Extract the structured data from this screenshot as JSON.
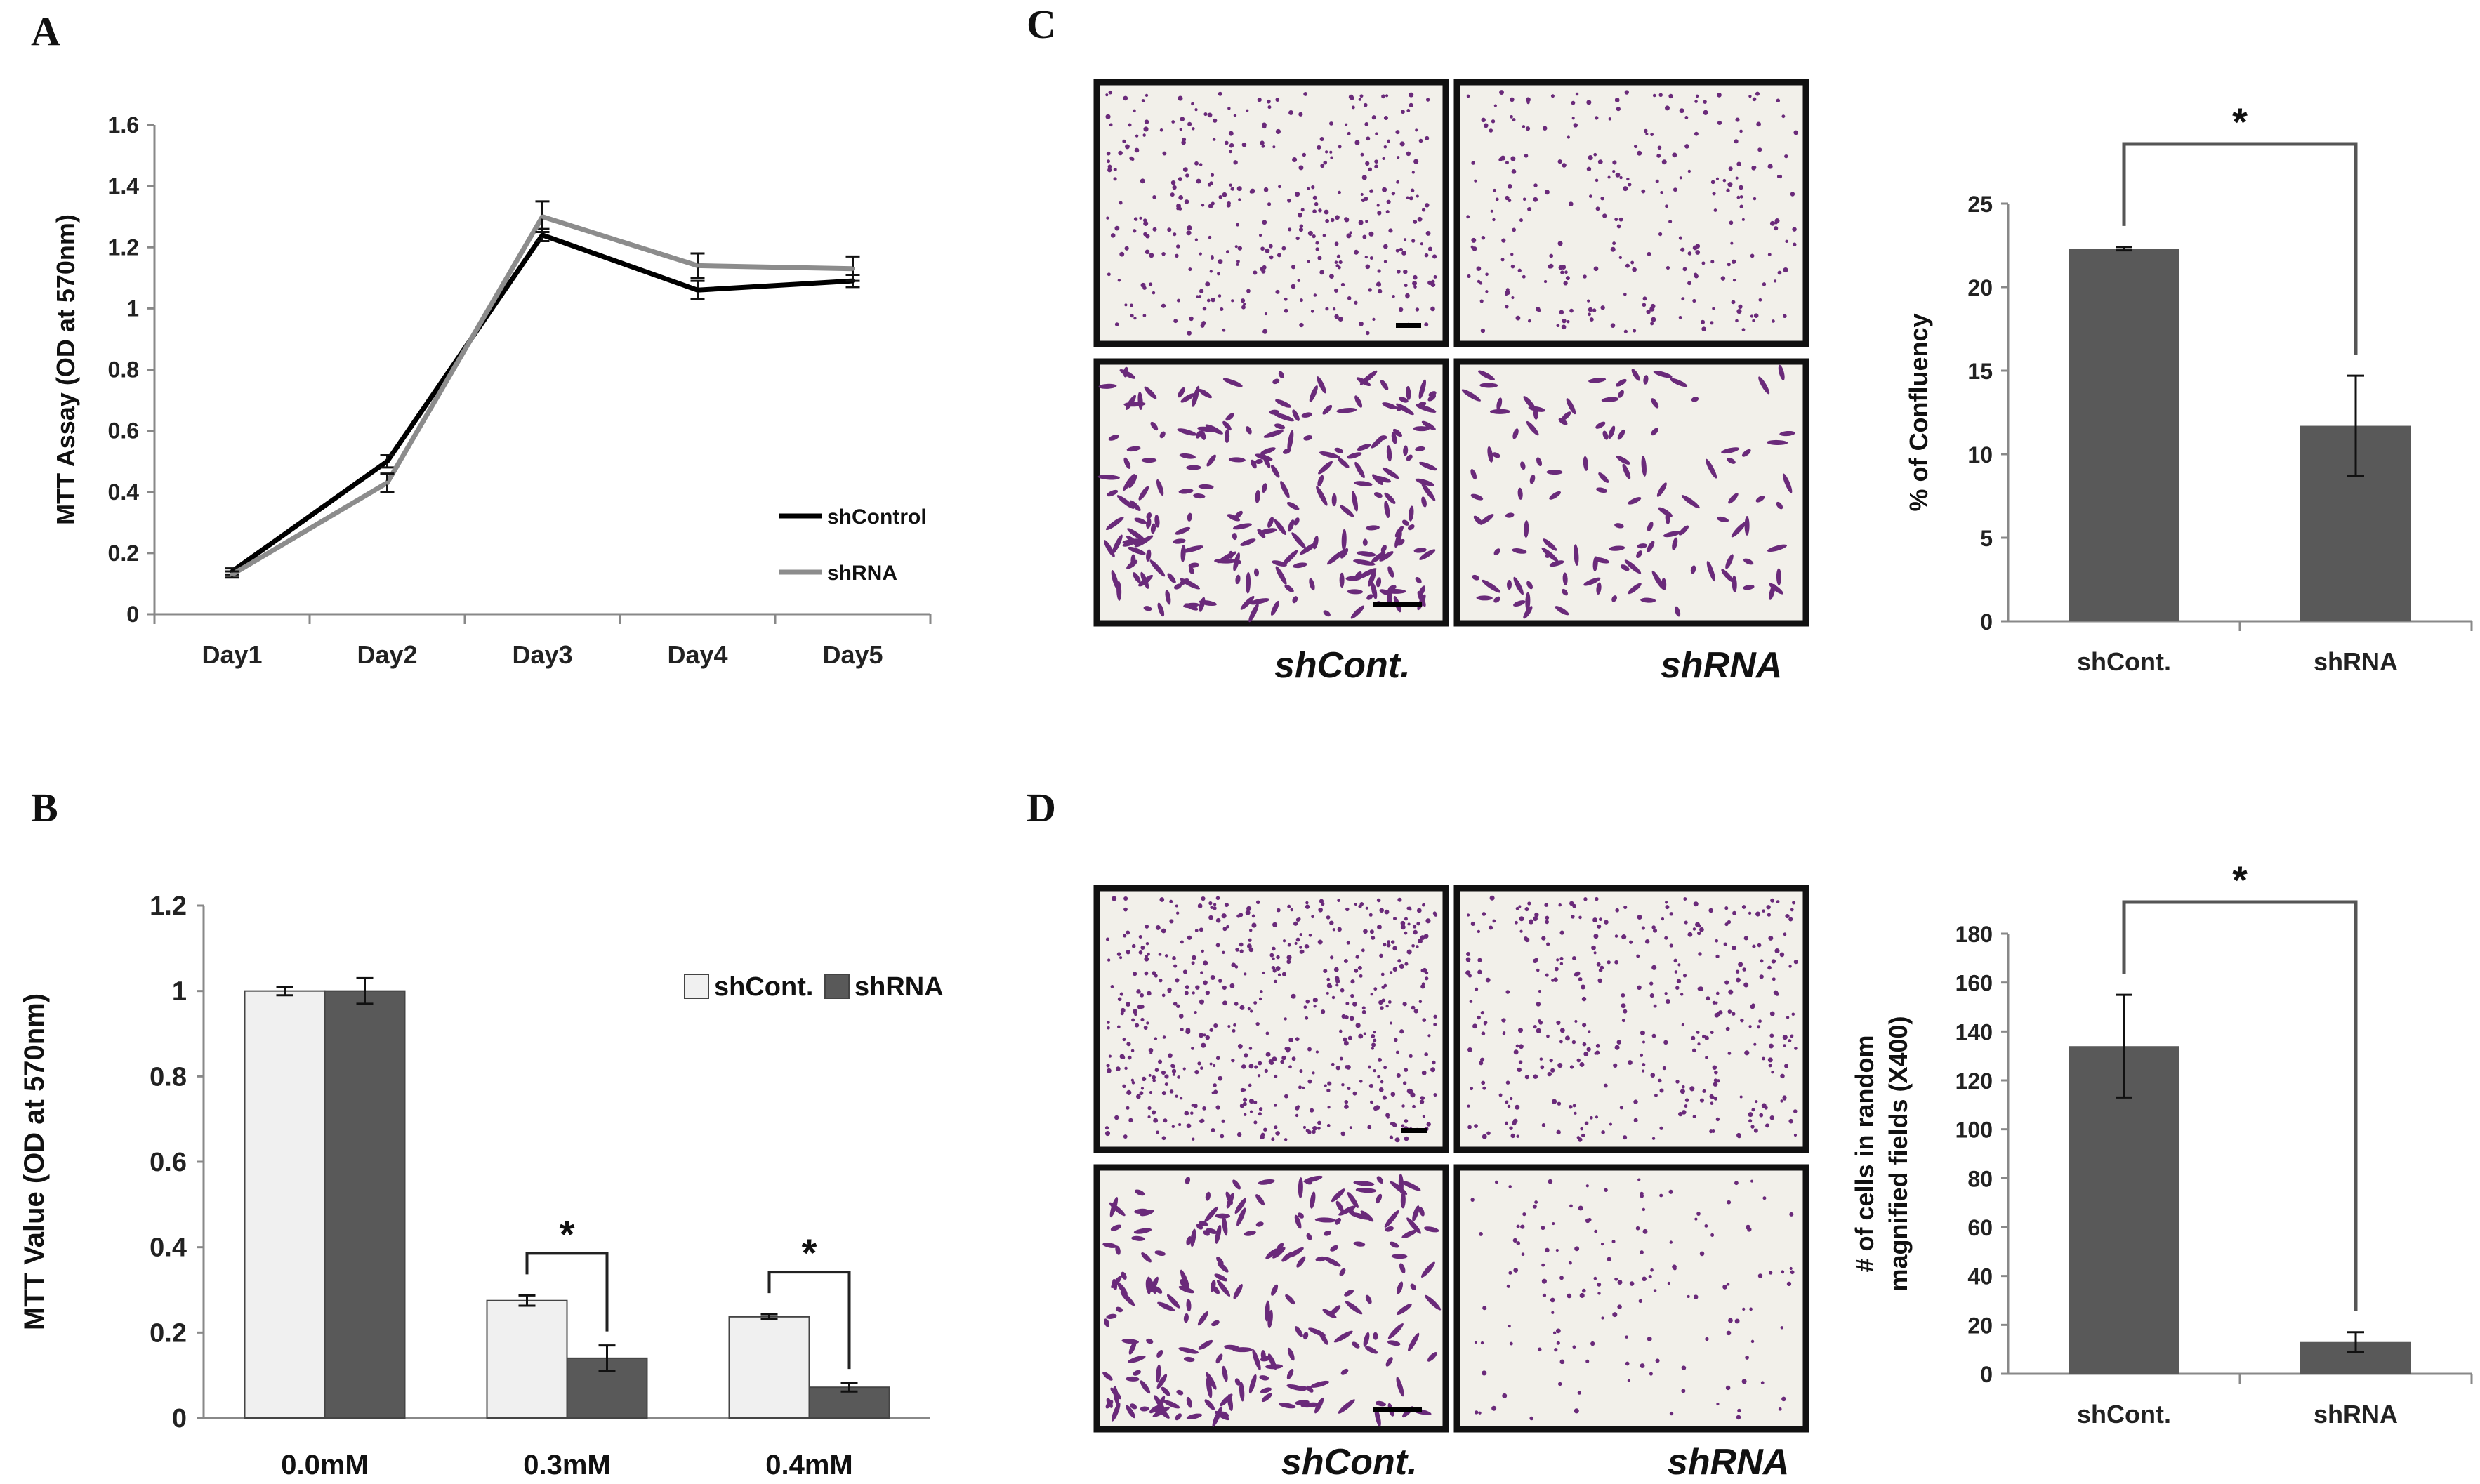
{
  "panels": {
    "A": "A",
    "B": "B",
    "C": "C",
    "D": "D"
  },
  "captions": {
    "c_left": "shCont.",
    "c_right": "shRNA",
    "d_left": "shCont.",
    "d_right": "shRNA"
  },
  "colors": {
    "dark_bar": "#595959",
    "light_bar": "#f0f0f0",
    "line_black": "#000000",
    "line_gray": "#8c8c8c",
    "micrograph_bg": "#f2f0ea",
    "cell_stain": "#6a2a7a"
  },
  "chart_data": [
    {
      "id": "A",
      "type": "line",
      "ylabel": "MTT Assay (OD at 570nm)",
      "categories": [
        "Day1",
        "Day2",
        "Day3",
        "Day4",
        "Day5"
      ],
      "yticks": [
        "0",
        "0.2",
        "0.4",
        "0.6",
        "0.8",
        "1",
        "1.2",
        "1.4",
        "1.6"
      ],
      "ylim": [
        0,
        1.6
      ],
      "legend_position": "right",
      "series": [
        {
          "name": "shControl",
          "color": "#000000",
          "values": [
            0.14,
            0.5,
            1.24,
            1.06,
            1.09
          ],
          "errors": [
            0.01,
            0.02,
            0.02,
            0.03,
            0.02
          ]
        },
        {
          "name": "shRNA",
          "color": "#8c8c8c",
          "values": [
            0.13,
            0.43,
            1.3,
            1.14,
            1.13
          ],
          "errors": [
            0.01,
            0.03,
            0.05,
            0.04,
            0.04
          ]
        }
      ]
    },
    {
      "id": "B",
      "type": "bar",
      "ylabel": "MTT Value (OD at 570nm)",
      "categories": [
        "0.0mM",
        "0.3mM",
        "0.4mM"
      ],
      "yticks": [
        "0",
        "0.2",
        "0.4",
        "0.6",
        "0.8",
        "1",
        "1.2"
      ],
      "ylim": [
        0,
        1.2
      ],
      "legend_position": "top-right",
      "series": [
        {
          "name": "shCont.",
          "color": "#f0f0f0",
          "values": [
            1.0,
            0.275,
            0.237
          ],
          "errors": [
            0.01,
            0.012,
            0.006
          ]
        },
        {
          "name": "shRNA",
          "color": "#595959",
          "values": [
            1.0,
            0.14,
            0.072
          ],
          "errors": [
            0.03,
            0.03,
            0.01
          ]
        }
      ],
      "significance": [
        "",
        "*",
        "*"
      ]
    },
    {
      "id": "C",
      "type": "bar",
      "ylabel": "% of Confluency",
      "categories": [
        "shCont.",
        "shRNA"
      ],
      "yticks": [
        "0",
        "5",
        "10",
        "15",
        "20",
        "25"
      ],
      "ylim": [
        0,
        25
      ],
      "values": [
        22.3,
        11.7
      ],
      "errors": [
        0.1,
        3.0
      ],
      "significance": "*"
    },
    {
      "id": "D",
      "type": "bar",
      "ylabel": "# of cells in random magnified fields (X400)",
      "ylabel_lines": [
        "# of cells in random",
        "magnified fields (X400)"
      ],
      "categories": [
        "shCont.",
        "shRNA"
      ],
      "yticks": [
        "0",
        "20",
        "40",
        "60",
        "80",
        "100",
        "120",
        "140",
        "160",
        "180"
      ],
      "ylim": [
        0,
        180
      ],
      "values": [
        134,
        13
      ],
      "errors": [
        21,
        4
      ],
      "significance": "*"
    }
  ]
}
